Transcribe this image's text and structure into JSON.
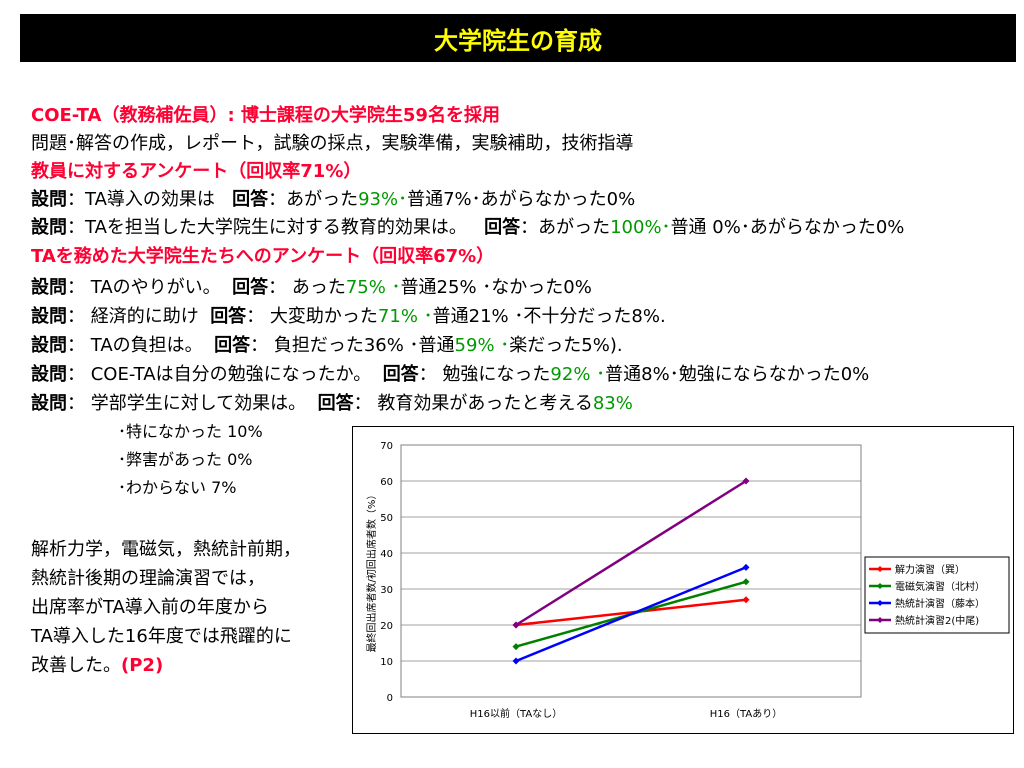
{
  "title": "大学院生の育成",
  "lines": {
    "l1": "COE-TA（教務補佐員）: 博士課程の大学院生59名を採用",
    "l2": "問題･解答の作成，レポート，試験の採点，実験準備，実験補助，技術指導",
    "l3": "教員に対するアンケート（回収率71%）",
    "l4": {
      "q": "設問",
      "a": "：TA導入の効果は",
      "r": "回答",
      "b": "：あがった",
      "g": "93%･",
      "c": "普通7%･あがらなかった0%"
    },
    "l5": {
      "q": "設問",
      "a": "：TAを担当した大学院生に対する教育的効果は。",
      "r": "回答",
      "b": "：あがった",
      "g": "100%･",
      "c": "普通 0%･あがらなかった0%"
    },
    "l6": "TAを務めた大学院生たちへのアンケート（回収率67%）",
    "l7": {
      "q": "設問",
      "a": "：  TAのやりがい。",
      "r": "回答",
      "b": "：  あった",
      "g": "75% ･",
      "c": "普通25% ･なかった0%"
    },
    "l8": {
      "q": "設問",
      "a": "：  経済的に助け",
      "r": "回答",
      "b": "：  大変助かった",
      "g": "71% ･",
      "c": "普通21% ･不十分だった8%."
    },
    "l9": {
      "q": "設問",
      "a": "：  TAの負担は。",
      "r": "回答",
      "b": "：  負担だった36% ･普通",
      "g": "59% ･",
      "c": "楽だった5%)."
    },
    "l10": {
      "q": "設問",
      "a": "：  COE-TAは自分の勉強になったか。",
      "r": "回答",
      "b": "：  勉強になった",
      "g": "92% ･",
      "c": "普通8%･勉強にならなかった0%"
    },
    "l11": {
      "q": "設問",
      "a": "：  学部学生に対して効果は。",
      "r": "回答",
      "b": "：  教育効果があったと考える",
      "g": "83%"
    },
    "sub1": "･特になかった  10%",
    "sub2": "･弊害があった  0%",
    "sub3": "･わからない  7%"
  },
  "note": {
    "n1": "解析力学，電磁気，熱統計前期，",
    "n2": "熱統計後期の理論演習では，",
    "n3": "出席率がTA導入前の年度から",
    "n4": "TA導入した16年度では飛躍的に",
    "n5": "改善した。",
    "ref": "(P2)"
  },
  "colors": {
    "title_bg": "#000000",
    "title_text": "#ffff00",
    "accent_red": "#ff0033",
    "accent_green": "#009900"
  },
  "chart_data": {
    "type": "line",
    "categories": [
      "H16以前（TAなし）",
      "H16（TAあり）"
    ],
    "ylabel": "最終回出席者数/初回出席者数（%）",
    "xlabel": "",
    "ylim": [
      0,
      70
    ],
    "yticks": [
      0,
      10,
      20,
      30,
      40,
      50,
      60,
      70
    ],
    "grid": true,
    "legend_position": "right",
    "series": [
      {
        "name": "解力演習（巽）",
        "color": "#ff0000",
        "values": [
          20,
          27
        ]
      },
      {
        "name": "電磁気演習（北村）",
        "color": "#008000",
        "values": [
          14,
          32
        ]
      },
      {
        "name": "熱統計演習（藤本）",
        "color": "#0000ff",
        "values": [
          10,
          36
        ]
      },
      {
        "name": "熱統計演習2(中尾)",
        "color": "#800080",
        "values": [
          20,
          60
        ]
      }
    ]
  }
}
